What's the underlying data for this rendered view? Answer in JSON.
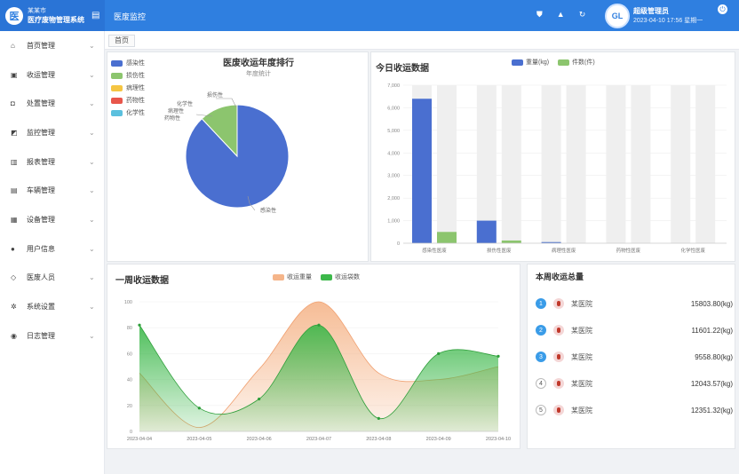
{
  "app": {
    "logo_mark": "医",
    "logo_line1": "某某市",
    "logo_line2": "医疗废物管理系统",
    "page_title": "医废监控",
    "user_badge": "GL",
    "user_name": "超级管理员",
    "user_time": "2023-04-10 17:56 星期一"
  },
  "sidebar": {
    "items": [
      {
        "label": "首页管理",
        "icon": "home-icon",
        "glyph": "⌂"
      },
      {
        "label": "收运管理",
        "icon": "truck-icon",
        "glyph": "▣"
      },
      {
        "label": "处置管理",
        "icon": "lock-icon",
        "glyph": "◘"
      },
      {
        "label": "监控管理",
        "icon": "monitor-icon",
        "glyph": "◩"
      },
      {
        "label": "报表管理",
        "icon": "bar-chart-icon",
        "glyph": "▥"
      },
      {
        "label": "车辆管理",
        "icon": "vehicle-icon",
        "glyph": "▤"
      },
      {
        "label": "设备管理",
        "icon": "device-icon",
        "glyph": "▦"
      },
      {
        "label": "用户信息",
        "icon": "user-icon",
        "glyph": "●"
      },
      {
        "label": "医废人员",
        "icon": "shield-icon",
        "glyph": "◇"
      },
      {
        "label": "系统设置",
        "icon": "gear-icon",
        "glyph": "✲"
      },
      {
        "label": "日志管理",
        "icon": "log-icon",
        "glyph": "◉"
      }
    ]
  },
  "tabs": [
    {
      "label": "首页"
    }
  ],
  "pie": {
    "title": "医废收运年度排行",
    "subtitle": "年度统计",
    "legend": [
      {
        "label": "感染性",
        "color": "#4a6fd0"
      },
      {
        "label": "损伤性",
        "color": "#8cc56e"
      },
      {
        "label": "病理性",
        "color": "#f5c542"
      },
      {
        "label": "药物性",
        "color": "#e8564b"
      },
      {
        "label": "化学性",
        "color": "#5bc0de"
      }
    ],
    "slice_labels": [
      "损伤性",
      "化学性",
      "病理性",
      "药物性",
      "感染性"
    ]
  },
  "bar": {
    "title": "今日收运数据",
    "legend": [
      {
        "label": "重量(kg)",
        "color": "#4a6fd0"
      },
      {
        "label": "件数(件)",
        "color": "#8cc56e"
      }
    ]
  },
  "line": {
    "title": "一周收运数据",
    "legend": [
      {
        "label": "收运重量",
        "color": "#f5b58a"
      },
      {
        "label": "收运袋数",
        "color": "#3cb84a"
      }
    ]
  },
  "rank": {
    "title": "本周收运总量",
    "rows": [
      {
        "rank": "1",
        "name": "某医院",
        "value": "15803.80(kg)",
        "color": "#3a9ce8"
      },
      {
        "rank": "2",
        "name": "某医院",
        "value": "11601.22(kg)",
        "color": "#3a9ce8"
      },
      {
        "rank": "3",
        "name": "某医院",
        "value": "9558.80(kg)",
        "color": "#3a9ce8"
      },
      {
        "rank": "4",
        "name": "某医院",
        "value": "12043.57(kg)",
        "color": ""
      },
      {
        "rank": "5",
        "name": "某医院",
        "value": "12351.32(kg)",
        "color": ""
      }
    ]
  },
  "chart_data": [
    {
      "type": "pie",
      "title": "医废收运年度排行",
      "subtitle": "年度统计",
      "categories": [
        "感染性",
        "损伤性",
        "病理性",
        "药物性",
        "化学性"
      ],
      "values": [
        88,
        12,
        0,
        0,
        0
      ],
      "colors": [
        "#4a6fd0",
        "#8cc56e",
        "#f5c542",
        "#e8564b",
        "#5bc0de"
      ],
      "legend": "left"
    },
    {
      "type": "bar",
      "title": "今日收运数据",
      "categories": [
        "感染性医废",
        "损伤性医废",
        "病理性医废",
        "药物性医废",
        "化学性医废"
      ],
      "series": [
        {
          "name": "重量(kg)",
          "values": [
            6400,
            1000,
            50,
            0,
            0
          ],
          "color": "#4a6fd0"
        },
        {
          "name": "件数(件)",
          "values": [
            500,
            120,
            0,
            0,
            0
          ],
          "color": "#8cc56e"
        }
      ],
      "ylim": [
        0,
        7000
      ],
      "yticks": [
        "0",
        "1,000",
        "2,000",
        "3,000",
        "4,000",
        "5,000",
        "6,000",
        "7,000"
      ],
      "legend": "top"
    },
    {
      "type": "area",
      "title": "一周收运数据",
      "x": [
        "2023-04-04",
        "2023-04-05",
        "2023-04-06",
        "2023-04-07",
        "2023-04-08",
        "2023-04-09",
        "2023-04-10"
      ],
      "series": [
        {
          "name": "收运重量",
          "values": [
            45,
            3,
            48,
            100,
            45,
            40,
            50
          ],
          "color": "#f5b58a"
        },
        {
          "name": "收运袋数",
          "values": [
            82,
            18,
            25,
            82,
            10,
            60,
            58
          ],
          "color": "#3cb84a"
        }
      ],
      "ylim": [
        0,
        100
      ],
      "yticks": [
        "0",
        "20",
        "40",
        "60",
        "80",
        "100"
      ],
      "legend": "top"
    }
  ]
}
